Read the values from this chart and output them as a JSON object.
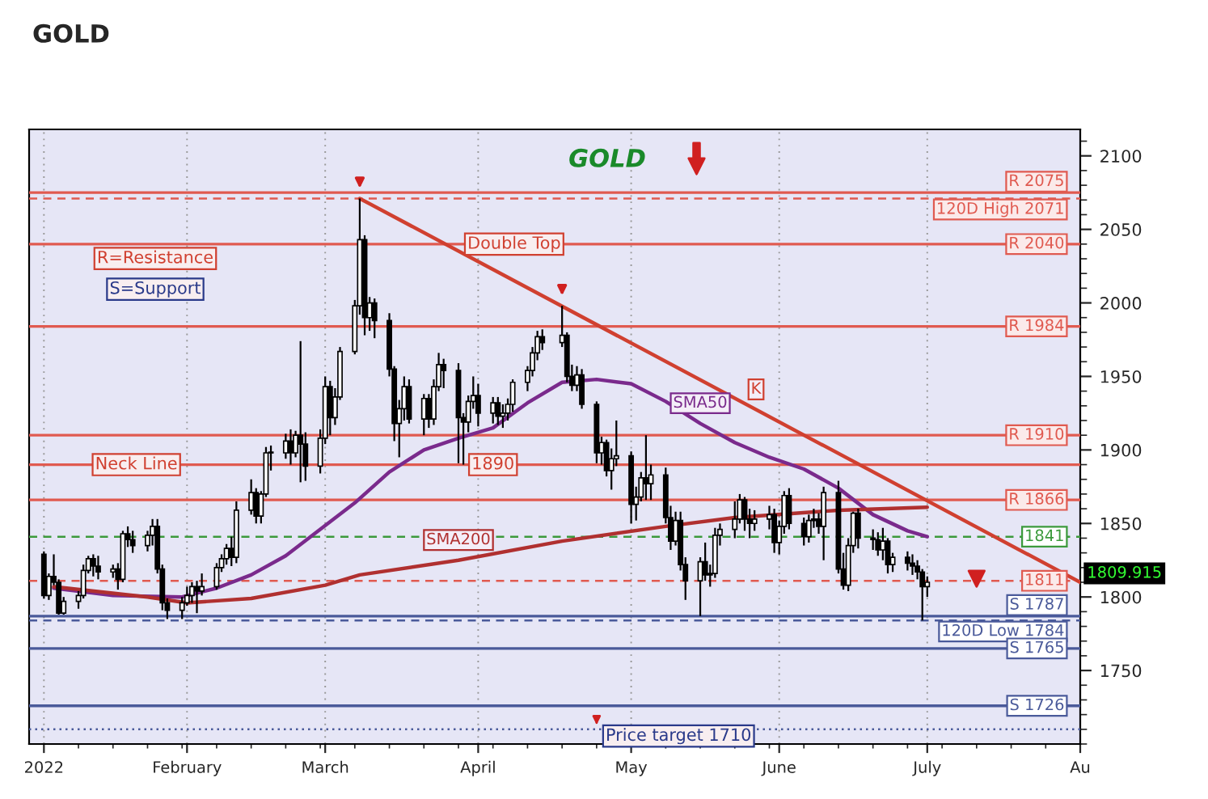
{
  "chart_data": {
    "type": "candlestick",
    "title": "GOLD",
    "x": [
      "2022-01-03",
      "2022-01-04",
      "2022-01-05",
      "2022-01-06",
      "2022-01-07",
      "2022-01-10",
      "2022-01-11",
      "2022-01-12",
      "2022-01-13",
      "2022-01-14",
      "2022-01-17",
      "2022-01-18",
      "2022-01-19",
      "2022-01-20",
      "2022-01-21",
      "2022-01-24",
      "2022-01-25",
      "2022-01-26",
      "2022-01-27",
      "2022-01-28",
      "2022-01-31",
      "2022-02-01",
      "2022-02-02",
      "2022-02-03",
      "2022-02-04",
      "2022-02-07",
      "2022-02-08",
      "2022-02-09",
      "2022-02-10",
      "2022-02-11",
      "2022-02-14",
      "2022-02-15",
      "2022-02-16",
      "2022-02-17",
      "2022-02-18",
      "2022-02-21",
      "2022-02-22",
      "2022-02-23",
      "2022-02-24",
      "2022-02-25",
      "2022-02-28",
      "2022-03-01",
      "2022-03-02",
      "2022-03-03",
      "2022-03-04",
      "2022-03-07",
      "2022-03-08",
      "2022-03-09",
      "2022-03-10",
      "2022-03-11",
      "2022-03-14",
      "2022-03-15",
      "2022-03-16",
      "2022-03-17",
      "2022-03-18",
      "2022-03-21",
      "2022-03-22",
      "2022-03-23",
      "2022-03-24",
      "2022-03-25",
      "2022-03-28",
      "2022-03-29",
      "2022-03-30",
      "2022-03-31",
      "2022-04-01",
      "2022-04-04",
      "2022-04-05",
      "2022-04-06",
      "2022-04-07",
      "2022-04-08",
      "2022-04-11",
      "2022-04-12",
      "2022-04-13",
      "2022-04-14",
      "2022-04-18",
      "2022-04-19",
      "2022-04-20",
      "2022-04-21",
      "2022-04-22",
      "2022-04-25",
      "2022-04-26",
      "2022-04-27",
      "2022-04-28",
      "2022-04-29",
      "2022-05-02",
      "2022-05-03",
      "2022-05-04",
      "2022-05-05",
      "2022-05-06",
      "2022-05-09",
      "2022-05-10",
      "2022-05-11",
      "2022-05-12",
      "2022-05-13",
      "2022-05-16",
      "2022-05-17",
      "2022-05-18",
      "2022-05-19",
      "2022-05-20",
      "2022-05-23",
      "2022-05-24",
      "2022-05-25",
      "2022-05-26",
      "2022-05-27",
      "2022-05-30",
      "2022-05-31",
      "2022-06-01",
      "2022-06-02",
      "2022-06-03",
      "2022-06-06",
      "2022-06-07",
      "2022-06-08",
      "2022-06-09",
      "2022-06-10",
      "2022-06-13",
      "2022-06-14",
      "2022-06-15",
      "2022-06-16",
      "2022-06-17",
      "2022-06-20",
      "2022-06-21",
      "2022-06-22",
      "2022-06-23",
      "2022-06-24",
      "2022-06-27",
      "2022-06-28",
      "2022-06-29",
      "2022-06-30",
      "2022-07-01"
    ],
    "ohlc": [
      [
        1829,
        1831,
        1799,
        1801
      ],
      [
        1801,
        1816,
        1798,
        1814
      ],
      [
        1814,
        1829,
        1808,
        1810
      ],
      [
        1810,
        1812,
        1788,
        1789
      ],
      [
        1789,
        1800,
        1788,
        1797
      ],
      [
        1797,
        1804,
        1792,
        1801
      ],
      [
        1801,
        1822,
        1799,
        1818
      ],
      [
        1818,
        1828,
        1816,
        1826
      ],
      [
        1826,
        1829,
        1814,
        1821
      ],
      [
        1821,
        1828,
        1812,
        1817
      ],
      [
        1817,
        1822,
        1813,
        1819
      ],
      [
        1819,
        1823,
        1805,
        1812
      ],
      [
        1812,
        1845,
        1810,
        1843
      ],
      [
        1843,
        1848,
        1834,
        1839
      ],
      [
        1839,
        1845,
        1830,
        1835
      ],
      [
        1835,
        1845,
        1831,
        1842
      ],
      [
        1842,
        1853,
        1835,
        1848
      ],
      [
        1848,
        1853,
        1816,
        1819
      ],
      [
        1819,
        1822,
        1791,
        1796
      ],
      [
        1796,
        1799,
        1785,
        1791
      ],
      [
        1791,
        1800,
        1785,
        1796
      ],
      [
        1796,
        1807,
        1794,
        1801
      ],
      [
        1801,
        1810,
        1796,
        1807
      ],
      [
        1807,
        1811,
        1789,
        1804
      ],
      [
        1804,
        1816,
        1801,
        1807
      ],
      [
        1807,
        1823,
        1805,
        1820
      ],
      [
        1820,
        1829,
        1817,
        1826
      ],
      [
        1826,
        1836,
        1822,
        1833
      ],
      [
        1833,
        1841,
        1821,
        1827
      ],
      [
        1827,
        1865,
        1823,
        1859
      ],
      [
        1859,
        1880,
        1856,
        1871
      ],
      [
        1871,
        1874,
        1850,
        1855
      ],
      [
        1855,
        1872,
        1850,
        1870
      ],
      [
        1870,
        1902,
        1868,
        1898
      ],
      [
        1898,
        1903,
        1886,
        1898
      ],
      [
        1898,
        1911,
        1894,
        1906
      ],
      [
        1906,
        1914,
        1890,
        1898
      ],
      [
        1898,
        1913,
        1895,
        1910
      ],
      [
        1910,
        1974,
        1878,
        1904
      ],
      [
        1904,
        1912,
        1879,
        1889
      ],
      [
        1889,
        1914,
        1884,
        1908
      ],
      [
        1908,
        1950,
        1904,
        1943
      ],
      [
        1943,
        1947,
        1910,
        1922
      ],
      [
        1922,
        1942,
        1917,
        1936
      ],
      [
        1936,
        1970,
        1934,
        1967
      ],
      [
        1967,
        2002,
        1965,
        1998
      ],
      [
        1998,
        2071,
        1992,
        2043
      ],
      [
        2043,
        2046,
        1978,
        1990
      ],
      [
        1990,
        2004,
        1981,
        2000
      ],
      [
        2000,
        2003,
        1976,
        1988
      ],
      [
        1988,
        1993,
        1950,
        1955
      ],
      [
        1955,
        1957,
        1906,
        1918
      ],
      [
        1918,
        1934,
        1895,
        1928
      ],
      [
        1928,
        1950,
        1920,
        1943
      ],
      [
        1943,
        1948,
        1918,
        1921
      ],
      [
        1921,
        1938,
        1910,
        1935
      ],
      [
        1935,
        1938,
        1915,
        1921
      ],
      [
        1921,
        1948,
        1917,
        1943
      ],
      [
        1943,
        1966,
        1940,
        1958
      ],
      [
        1958,
        1962,
        1942,
        1954
      ],
      [
        1954,
        1959,
        1891,
        1922
      ],
      [
        1922,
        1925,
        1890,
        1919
      ],
      [
        1919,
        1937,
        1912,
        1933
      ],
      [
        1933,
        1950,
        1928,
        1937
      ],
      [
        1937,
        1945,
        1916,
        1925
      ],
      [
        1925,
        1936,
        1918,
        1932
      ],
      [
        1932,
        1936,
        1917,
        1923
      ],
      [
        1923,
        1931,
        1915,
        1925
      ],
      [
        1925,
        1935,
        1920,
        1931
      ],
      [
        1931,
        1948,
        1926,
        1946
      ],
      [
        1946,
        1957,
        1940,
        1954
      ],
      [
        1954,
        1970,
        1950,
        1966
      ],
      [
        1966,
        1981,
        1961,
        1977
      ],
      [
        1977,
        1982,
        1968,
        1973
      ],
      [
        1973,
        1998,
        1970,
        1978
      ],
      [
        1978,
        1980,
        1946,
        1950
      ],
      [
        1950,
        1958,
        1940,
        1944
      ],
      [
        1944,
        1957,
        1940,
        1951
      ],
      [
        1951,
        1955,
        1928,
        1931
      ],
      [
        1931,
        1933,
        1891,
        1898
      ],
      [
        1898,
        1909,
        1890,
        1905
      ],
      [
        1905,
        1907,
        1882,
        1886
      ],
      [
        1886,
        1901,
        1873,
        1894
      ],
      [
        1894,
        1920,
        1889,
        1896
      ],
      [
        1896,
        1899,
        1850,
        1863
      ],
      [
        1863,
        1875,
        1852,
        1868
      ],
      [
        1868,
        1885,
        1865,
        1881
      ],
      [
        1881,
        1910,
        1866,
        1877
      ],
      [
        1877,
        1890,
        1866,
        1883
      ],
      [
        1883,
        1888,
        1850,
        1854
      ],
      [
        1854,
        1862,
        1832,
        1838
      ],
      [
        1838,
        1858,
        1835,
        1852
      ],
      [
        1852,
        1858,
        1818,
        1822
      ],
      [
        1822,
        1827,
        1798,
        1811
      ],
      [
        1811,
        1827,
        1787,
        1824
      ],
      [
        1824,
        1837,
        1811,
        1815
      ],
      [
        1815,
        1822,
        1807,
        1816
      ],
      [
        1816,
        1847,
        1813,
        1842
      ],
      [
        1842,
        1850,
        1835,
        1846
      ],
      [
        1846,
        1865,
        1840,
        1853
      ],
      [
        1853,
        1870,
        1850,
        1866
      ],
      [
        1866,
        1868,
        1845,
        1853
      ],
      [
        1853,
        1860,
        1840,
        1850
      ],
      [
        1850,
        1859,
        1845,
        1853
      ],
      [
        1853,
        1862,
        1846,
        1856
      ],
      [
        1856,
        1860,
        1830,
        1837
      ],
      [
        1837,
        1852,
        1829,
        1848
      ],
      [
        1848,
        1872,
        1843,
        1869
      ],
      [
        1869,
        1874,
        1846,
        1850
      ],
      [
        1850,
        1854,
        1835,
        1841
      ],
      [
        1841,
        1856,
        1837,
        1852
      ],
      [
        1852,
        1860,
        1847,
        1853
      ],
      [
        1853,
        1857,
        1843,
        1848
      ],
      [
        1848,
        1875,
        1825,
        1871
      ],
      [
        1871,
        1879,
        1816,
        1819
      ],
      [
        1819,
        1830,
        1805,
        1808
      ],
      [
        1808,
        1840,
        1804,
        1835
      ],
      [
        1835,
        1858,
        1830,
        1857
      ],
      [
        1857,
        1860,
        1833,
        1840
      ],
      [
        1840,
        1846,
        1832,
        1839
      ],
      [
        1839,
        1844,
        1828,
        1832
      ],
      [
        1832,
        1847,
        1825,
        1838
      ],
      [
        1838,
        1840,
        1816,
        1822
      ],
      [
        1822,
        1830,
        1817,
        1827
      ],
      [
        1827,
        1831,
        1818,
        1823
      ],
      [
        1823,
        1829,
        1815,
        1821
      ],
      [
        1821,
        1825,
        1812,
        1817
      ],
      [
        1817,
        1819,
        1784,
        1807
      ],
      [
        1807,
        1814,
        1800,
        1810
      ]
    ],
    "series": [
      {
        "name": "SMA50",
        "type": "line",
        "color": "#7a2a8c",
        "x": [
          "2022-01-05",
          "2022-01-17",
          "2022-01-31",
          "2022-02-07",
          "2022-02-14",
          "2022-02-21",
          "2022-02-28",
          "2022-03-07",
          "2022-03-14",
          "2022-03-21",
          "2022-03-28",
          "2022-04-04",
          "2022-04-11",
          "2022-04-18",
          "2022-04-25",
          "2022-05-02",
          "2022-05-09",
          "2022-05-16",
          "2022-05-23",
          "2022-05-30",
          "2022-06-06",
          "2022-06-13",
          "2022-06-20",
          "2022-06-27",
          "2022-07-01"
        ],
        "values": [
          1806,
          1801,
          1800,
          1806,
          1815,
          1828,
          1846,
          1864,
          1885,
          1900,
          1908,
          1915,
          1932,
          1946,
          1948,
          1945,
          1933,
          1918,
          1905,
          1895,
          1887,
          1874,
          1856,
          1845,
          1841
        ]
      },
      {
        "name": "SMA200",
        "type": "line",
        "color": "#b03030",
        "x": [
          "2022-01-05",
          "2022-01-24",
          "2022-02-01",
          "2022-02-14",
          "2022-03-01",
          "2022-03-08",
          "2022-03-28",
          "2022-04-18",
          "2022-05-09",
          "2022-05-23",
          "2022-06-13",
          "2022-07-01"
        ],
        "values": [
          1807,
          1800,
          1796,
          1799,
          1808,
          1815,
          1825,
          1838,
          1848,
          1854,
          1859,
          1861
        ]
      },
      {
        "name": "K",
        "type": "line",
        "color": "#d04030",
        "x": [
          "2022-03-08",
          "2022-08-01"
        ],
        "values": [
          2071,
          1810
        ]
      }
    ],
    "xlim": [
      "2021-12-31",
      "2022-08-01"
    ],
    "xticks": [
      {
        "value": "2022-01-03",
        "label": "2022"
      },
      {
        "value": "2022-02-01",
        "label": "February"
      },
      {
        "value": "2022-03-01",
        "label": "March"
      },
      {
        "value": "2022-04-01",
        "label": "April"
      },
      {
        "value": "2022-05-02",
        "label": "May"
      },
      {
        "value": "2022-06-01",
        "label": "June"
      },
      {
        "value": "2022-07-01",
        "label": "July"
      },
      {
        "value": "2022-08-01",
        "label": "Au"
      }
    ],
    "ylim": [
      1700,
      2118
    ],
    "yticks": [
      1750,
      1800,
      1850,
      1900,
      1950,
      2000,
      2050,
      2100
    ],
    "grid": "x",
    "ref_lines": [
      {
        "axis": "y",
        "value": 2075,
        "label": "R 2075",
        "color": "#e05a50",
        "line_style": "solid"
      },
      {
        "axis": "y",
        "value": 2071,
        "label": "120D High 2071",
        "color": "#e05a50",
        "line_style": "dashed"
      },
      {
        "axis": "y",
        "value": 2040,
        "label": "R 2040",
        "color": "#e05a50",
        "line_style": "solid"
      },
      {
        "axis": "y",
        "value": 1984,
        "label": "R 1984",
        "color": "#e05a50",
        "line_style": "solid"
      },
      {
        "axis": "y",
        "value": 1910,
        "label": "R 1910",
        "color": "#e05a50",
        "line_style": "solid"
      },
      {
        "axis": "y",
        "value": 1890,
        "label": null,
        "color": "#e05a50",
        "line_style": "solid"
      },
      {
        "axis": "y",
        "value": 1866,
        "label": "R 1866",
        "color": "#e05a50",
        "line_style": "solid"
      },
      {
        "axis": "y",
        "value": 1841,
        "label": "1841",
        "color": "#3c9a3c",
        "line_style": "dashed"
      },
      {
        "axis": "y",
        "value": 1811,
        "label": "1811",
        "color": "#e05a50",
        "line_style": "dashed"
      },
      {
        "axis": "y",
        "value": 1787,
        "label": "S 1787",
        "color": "#4a5a9a",
        "line_style": "solid"
      },
      {
        "axis": "y",
        "value": 1784,
        "label": "120D Low 1784",
        "color": "#4a5a9a",
        "line_style": "dashed"
      },
      {
        "axis": "y",
        "value": 1765,
        "label": "S 1765",
        "color": "#4a5a9a",
        "line_style": "solid"
      },
      {
        "axis": "y",
        "value": 1726,
        "label": "S 1726",
        "color": "#4a5a9a",
        "line_style": "solid"
      },
      {
        "axis": "y",
        "value": 1710,
        "label": null,
        "color": "#4a5a9a",
        "line_style": "dotted"
      }
    ],
    "annotations": [
      "GOLD",
      "R=Resistance",
      "S=Support",
      {
        "text": "Double Top",
        "x": "2022-03-28",
        "y": 2040
      },
      {
        "text": "Neck Line",
        "x": "2022-01-31",
        "y": 1890
      },
      {
        "text": "1890",
        "x": "2022-04-04",
        "y": 1890
      },
      {
        "text": "Price target 1710",
        "x": "2022-04-25",
        "y": 1710
      },
      {
        "text": "1809.915",
        "x": "2022-08-01",
        "y": 1809.915
      }
    ]
  }
}
